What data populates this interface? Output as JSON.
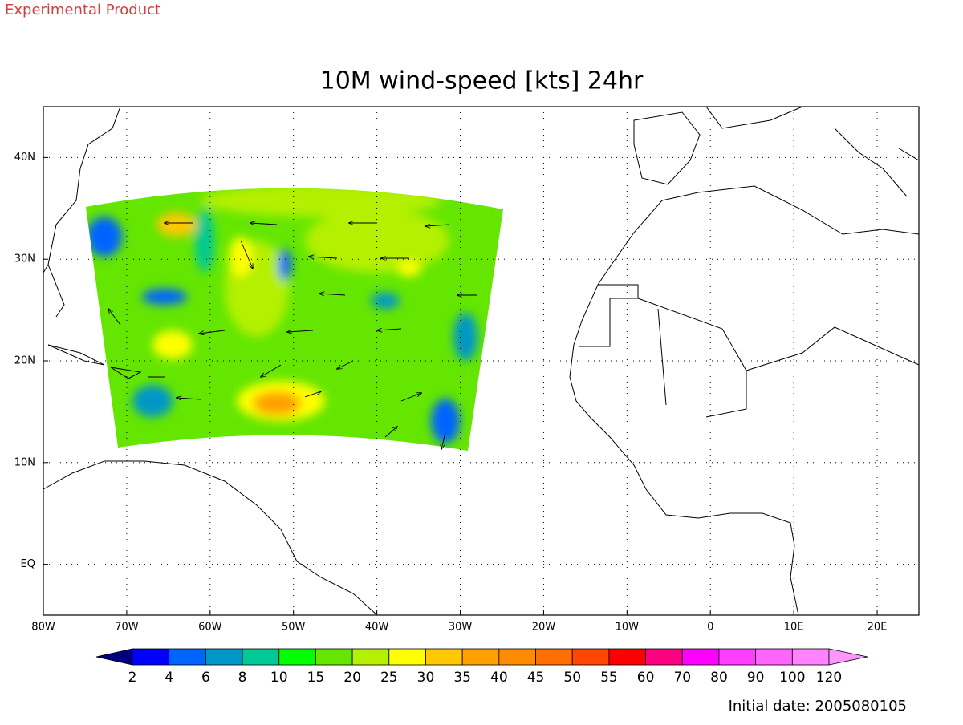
{
  "header": {
    "label": "Experimental Product"
  },
  "chart_data": {
    "type": "map",
    "title": "10M wind-speed [kts] 24hr",
    "xlim": [
      -80,
      25
    ],
    "ylim": [
      -5,
      45
    ],
    "xticks": [
      {
        "value": -80,
        "label": "80W"
      },
      {
        "value": -70,
        "label": "70W"
      },
      {
        "value": -60,
        "label": "60W"
      },
      {
        "value": -50,
        "label": "50W"
      },
      {
        "value": -40,
        "label": "40W"
      },
      {
        "value": -30,
        "label": "30W"
      },
      {
        "value": -20,
        "label": "20W"
      },
      {
        "value": -10,
        "label": "10W"
      },
      0,
      {
        "value": 10,
        "label": "10E"
      },
      {
        "value": 20,
        "label": "20E"
      }
    ],
    "yticks": [
      {
        "value": 0,
        "label": "EQ"
      },
      {
        "value": 10,
        "label": "10N"
      },
      {
        "value": 20,
        "label": "20N"
      },
      {
        "value": 30,
        "label": "30N"
      },
      {
        "value": 40,
        "label": "40N"
      }
    ],
    "grid": true,
    "colorbar": {
      "levels": [
        2,
        4,
        6,
        8,
        10,
        15,
        20,
        25,
        30,
        35,
        40,
        45,
        50,
        55,
        60,
        70,
        80,
        90,
        100,
        120
      ],
      "colors": [
        "#00007f",
        "#0000ff",
        "#0064ff",
        "#0096c8",
        "#00c896",
        "#00ff00",
        "#64e600",
        "#b4f000",
        "#ffff00",
        "#ffc800",
        "#ffa000",
        "#ff8c00",
        "#ff6e00",
        "#ff4600",
        "#ff0000",
        "#ff0080",
        "#ff00ff",
        "#ff3cff",
        "#ff64ff",
        "#ff82ff",
        "#ff96ff"
      ]
    }
  },
  "footer": {
    "initial_date": "Initial date: 2005080105"
  }
}
